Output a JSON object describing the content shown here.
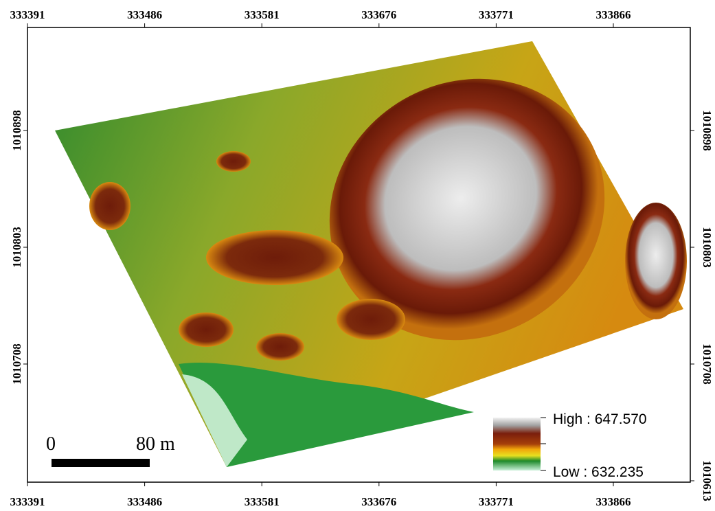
{
  "map": {
    "x_labels": [
      "333391",
      "333486",
      "333581",
      "333676",
      "333771",
      "333866"
    ],
    "y_labels_left": [
      "1010898",
      "1010803",
      "1010708"
    ],
    "y_labels_right": [
      "1010898",
      "1010803",
      "1010708",
      "1010613"
    ],
    "scale_bar": {
      "start": "0",
      "end": "80 m"
    },
    "legend": {
      "high": "High : 647.570",
      "low": "Low : 632.235"
    }
  }
}
